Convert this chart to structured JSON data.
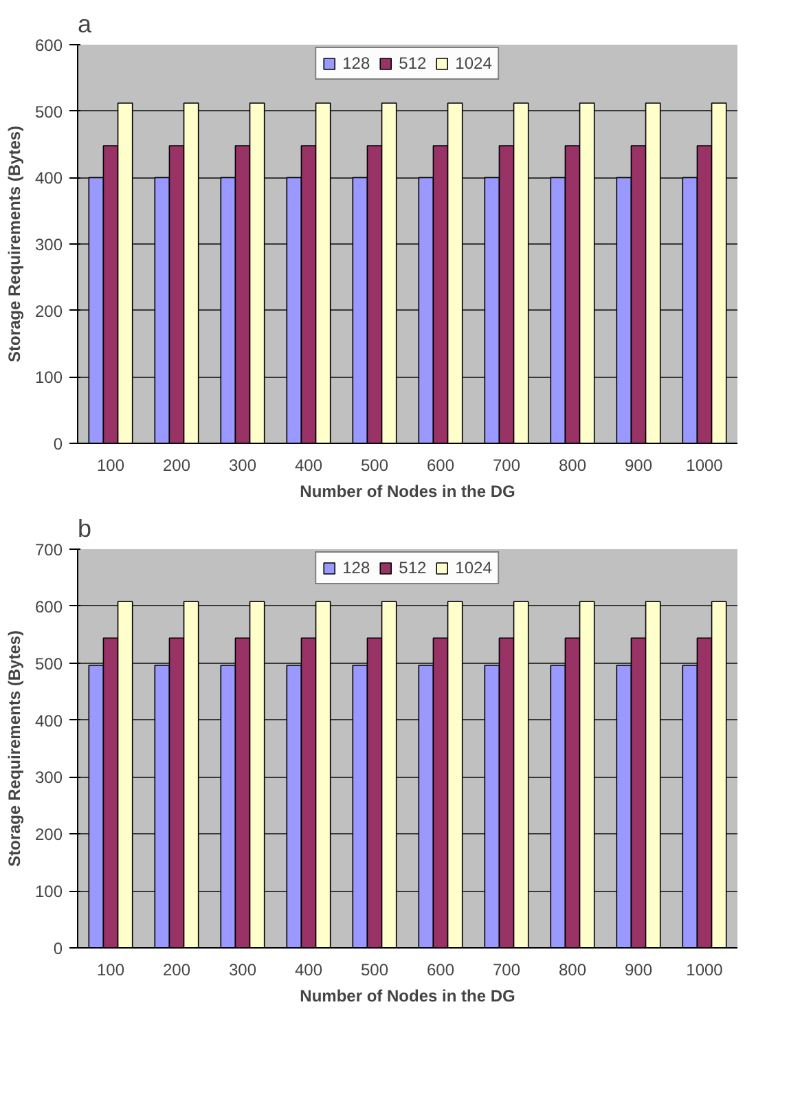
{
  "chart_data": [
    {
      "type": "bar",
      "title": "a",
      "xlabel": "Number of Nodes in the DG",
      "ylabel": "Storage Requirements (Bytes)",
      "categories": [
        "100",
        "200",
        "300",
        "400",
        "500",
        "600",
        "700",
        "800",
        "900",
        "1000"
      ],
      "ylim": [
        0,
        600
      ],
      "yticks": [
        0,
        100,
        200,
        300,
        400,
        500,
        600
      ],
      "grid": "y",
      "legend": "top",
      "series": [
        {
          "name": "128",
          "color": "#9999ff",
          "values": [
            400,
            400,
            400,
            400,
            400,
            400,
            400,
            400,
            400,
            400
          ]
        },
        {
          "name": "512",
          "color": "#993366",
          "values": [
            448,
            448,
            448,
            448,
            448,
            448,
            448,
            448,
            448,
            448
          ]
        },
        {
          "name": "1024",
          "color": "#ffffcc",
          "values": [
            512,
            512,
            512,
            512,
            512,
            512,
            512,
            512,
            512,
            512
          ]
        }
      ]
    },
    {
      "type": "bar",
      "title": "b",
      "xlabel": "Number of Nodes in the DG",
      "ylabel": "Storage Requirements (Bytes)",
      "categories": [
        "100",
        "200",
        "300",
        "400",
        "500",
        "600",
        "700",
        "800",
        "900",
        "1000"
      ],
      "ylim": [
        0,
        700
      ],
      "yticks": [
        0,
        100,
        200,
        300,
        400,
        500,
        600,
        700
      ],
      "grid": "y",
      "legend": "top",
      "series": [
        {
          "name": "128",
          "color": "#9999ff",
          "values": [
            496,
            496,
            496,
            496,
            496,
            496,
            496,
            496,
            496,
            496
          ]
        },
        {
          "name": "512",
          "color": "#993366",
          "values": [
            544,
            544,
            544,
            544,
            544,
            544,
            544,
            544,
            544,
            544
          ]
        },
        {
          "name": "1024",
          "color": "#ffffcc",
          "values": [
            608,
            608,
            608,
            608,
            608,
            608,
            608,
            608,
            608,
            608
          ]
        }
      ]
    }
  ]
}
